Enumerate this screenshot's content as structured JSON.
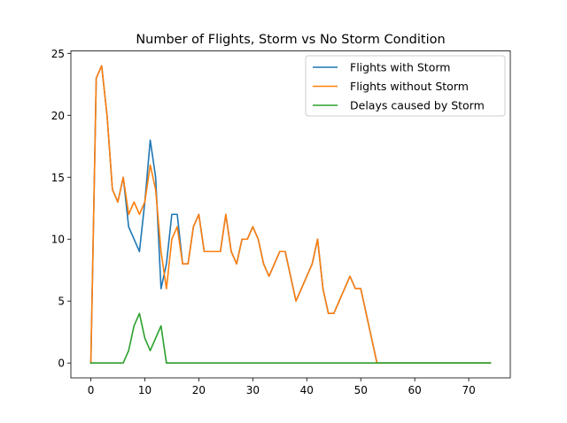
{
  "chart_data": {
    "type": "line",
    "title": "Number of Flights, Storm vs No Storm Condition",
    "xlabel": "",
    "ylabel": "",
    "xlim": [
      -3.7,
      77.7
    ],
    "ylim": [
      -1.2,
      25.2
    ],
    "xticks": [
      0,
      10,
      20,
      30,
      40,
      50,
      60,
      70
    ],
    "yticks": [
      0,
      5,
      10,
      15,
      20,
      25
    ],
    "grid": false,
    "legend_position": "top-right",
    "series": [
      {
        "name": "Flights with Storm",
        "color": "#1f77b4",
        "x": [
          0,
          1,
          2,
          3,
          4,
          5,
          6,
          7,
          8,
          9,
          10,
          11,
          12,
          13,
          14,
          15,
          16,
          17,
          18,
          19,
          20,
          21,
          22,
          23,
          24,
          25,
          26,
          27,
          28,
          29,
          30,
          31,
          32,
          33,
          34,
          35,
          36,
          37,
          38,
          39,
          40,
          41,
          42,
          43,
          44,
          45,
          46,
          47,
          48,
          49,
          50,
          51,
          52,
          53,
          54,
          74
        ],
        "values": [
          0,
          23,
          24,
          20,
          14,
          13,
          15,
          11,
          10,
          9,
          13,
          18,
          15,
          6,
          8,
          12,
          12,
          8,
          8,
          11,
          12,
          9,
          9,
          9,
          9,
          12,
          9,
          8,
          10,
          10,
          11,
          10,
          8,
          7,
          8,
          9,
          9,
          7,
          5,
          6,
          7,
          8,
          10,
          6,
          4,
          4,
          5,
          6,
          7,
          6,
          6,
          4,
          2,
          0,
          0,
          0
        ]
      },
      {
        "name": "Flights without Storm",
        "color": "#ff7f0e",
        "x": [
          0,
          1,
          2,
          3,
          4,
          5,
          6,
          7,
          8,
          9,
          10,
          11,
          12,
          13,
          14,
          15,
          16,
          17,
          18,
          19,
          20,
          21,
          22,
          23,
          24,
          25,
          26,
          27,
          28,
          29,
          30,
          31,
          32,
          33,
          34,
          35,
          36,
          37,
          38,
          39,
          40,
          41,
          42,
          43,
          44,
          45,
          46,
          47,
          48,
          49,
          50,
          51,
          52,
          53,
          54,
          74
        ],
        "values": [
          0,
          23,
          24,
          20,
          14,
          13,
          15,
          12,
          13,
          12,
          13,
          16,
          14,
          9,
          6,
          10,
          11,
          8,
          8,
          11,
          12,
          9,
          9,
          9,
          9,
          12,
          9,
          8,
          10,
          10,
          11,
          10,
          8,
          7,
          8,
          9,
          9,
          7,
          5,
          6,
          7,
          8,
          10,
          6,
          4,
          4,
          5,
          6,
          7,
          6,
          6,
          4,
          2,
          0,
          0,
          0
        ]
      },
      {
        "name": "Delays caused by Storm",
        "color": "#2ca02c",
        "x": [
          0,
          1,
          2,
          3,
          4,
          5,
          6,
          7,
          8,
          9,
          10,
          11,
          12,
          13,
          14,
          15,
          74
        ],
        "values": [
          0,
          0,
          0,
          0,
          0,
          0,
          0,
          1,
          3,
          4,
          2,
          1,
          2,
          3,
          0,
          0,
          0
        ]
      }
    ]
  }
}
